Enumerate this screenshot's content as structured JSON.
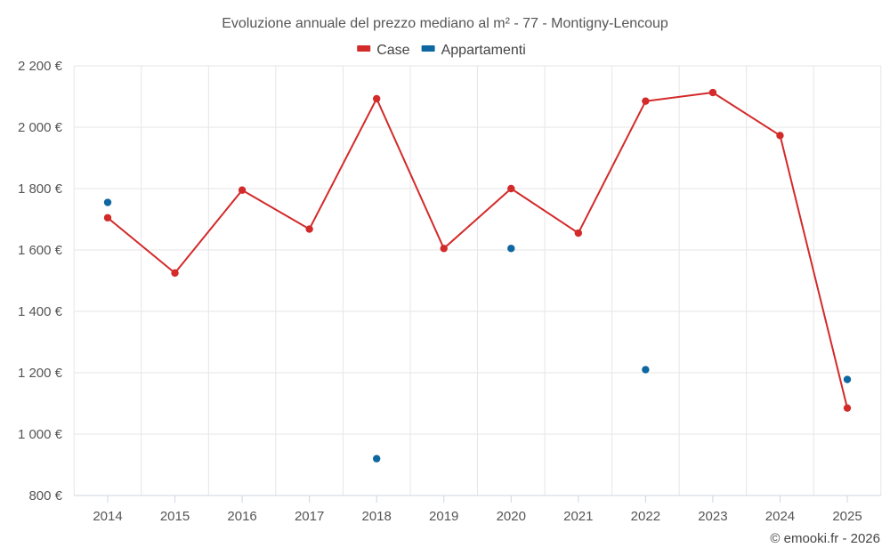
{
  "chart_data": {
    "type": "line",
    "title": "Evoluzione annuale del prezzo mediano al m² - 77 - Montigny-Lencoup",
    "categories": [
      "2014",
      "2015",
      "2016",
      "2017",
      "2018",
      "2019",
      "2020",
      "2021",
      "2022",
      "2023",
      "2024",
      "2025"
    ],
    "series": [
      {
        "name": "Case",
        "color": "#d32a2a",
        "values": [
          1705,
          1525,
          1795,
          1668,
          2093,
          1605,
          1800,
          1655,
          2085,
          2113,
          1973,
          1085
        ]
      },
      {
        "name": "Appartamenti",
        "color": "#0e67a0",
        "values": [
          1755,
          null,
          null,
          null,
          920,
          null,
          1605,
          null,
          1210,
          null,
          null,
          1178
        ]
      }
    ],
    "yticks": [
      800,
      1000,
      1200,
      1400,
      1600,
      1800,
      2000,
      2200
    ],
    "ytick_labels": [
      "800 €",
      "1 000 €",
      "1 200 €",
      "1 400 €",
      "1 600 €",
      "1 800 €",
      "2 000 €",
      "2 200 €"
    ],
    "ylim": [
      800,
      2200
    ],
    "xlabel": "",
    "ylabel": "",
    "grid": true,
    "legend_position": "top-center"
  },
  "credit": "© emooki.fr - 2026"
}
